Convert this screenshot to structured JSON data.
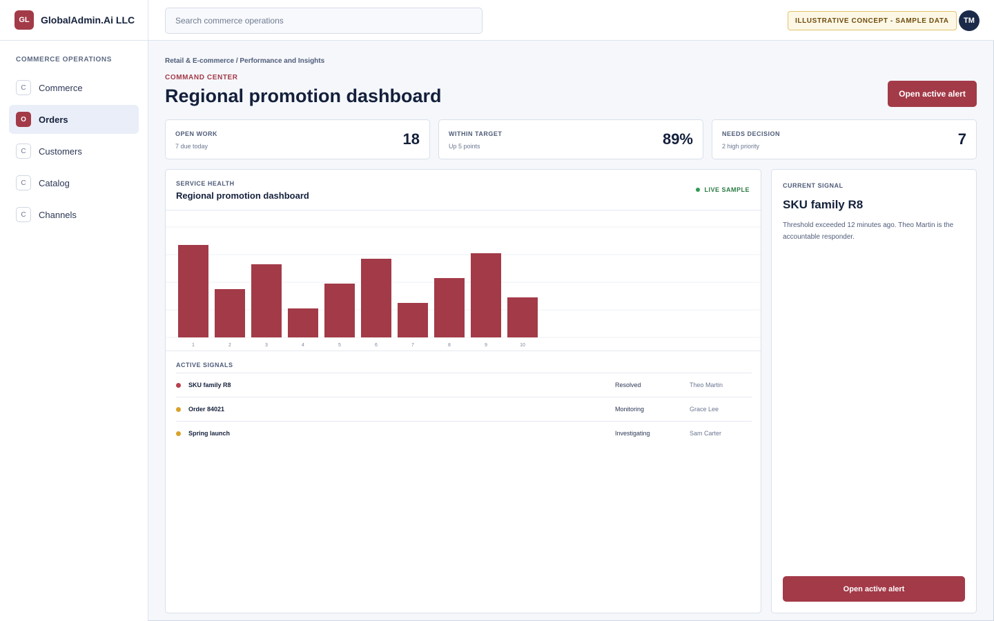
{
  "brand": {
    "initials": "GL",
    "name": "GlobalAdmin.Ai LLC"
  },
  "sidebar": {
    "heading": "COMMERCE OPERATIONS",
    "items": [
      {
        "badge": "C",
        "label": "Commerce",
        "active": false
      },
      {
        "badge": "O",
        "label": "Orders",
        "active": true
      },
      {
        "badge": "C",
        "label": "Customers",
        "active": false
      },
      {
        "badge": "C",
        "label": "Catalog",
        "active": false
      },
      {
        "badge": "C",
        "label": "Channels",
        "active": false
      }
    ]
  },
  "topbar": {
    "search_placeholder": "Search commerce operations",
    "concept_badge": "ILLUSTRATIVE CONCEPT - SAMPLE DATA",
    "avatar_initials": "TM"
  },
  "page": {
    "breadcrumb": "Retail & E-commerce / Performance and Insights",
    "eyebrow": "COMMAND CENTER",
    "title": "Regional promotion dashboard",
    "primary_action": "Open active alert"
  },
  "kpis": [
    {
      "label": "OPEN WORK",
      "sub": "7 due today",
      "value": "18"
    },
    {
      "label": "WITHIN TARGET",
      "sub": "Up 5 points",
      "value": "89%"
    },
    {
      "label": "NEEDS DECISION",
      "sub": "2 high priority",
      "value": "7"
    }
  ],
  "health": {
    "label": "SERVICE HEALTH",
    "title": "Regional promotion dashboard",
    "live": "LIVE SAMPLE"
  },
  "chart_data": {
    "type": "bar",
    "categories": [
      "1",
      "2",
      "3",
      "4",
      "5",
      "6",
      "7",
      "8",
      "9",
      "10"
    ],
    "values": [
      67,
      35,
      53,
      21,
      39,
      57,
      25,
      43,
      61,
      29
    ],
    "ylim": [
      0,
      90
    ],
    "grid": true,
    "color": "#a33a48"
  },
  "signals": {
    "label": "ACTIVE SIGNALS",
    "rows": [
      {
        "name": "SKU family R8",
        "status": "Resolved",
        "owner": "Theo Martin",
        "color": "#b8404d"
      },
      {
        "name": "Order 84021",
        "status": "Monitoring",
        "owner": "Grace Lee",
        "color": "#d9a22a"
      },
      {
        "name": "Spring launch",
        "status": "Investigating",
        "owner": "Sam Carter",
        "color": "#d9a22a"
      }
    ]
  },
  "current_signal": {
    "label": "CURRENT SIGNAL",
    "title": "SKU family R8",
    "description": "Threshold exceeded 12 minutes ago. Theo Martin is the accountable responder.",
    "action": "Open active alert"
  }
}
